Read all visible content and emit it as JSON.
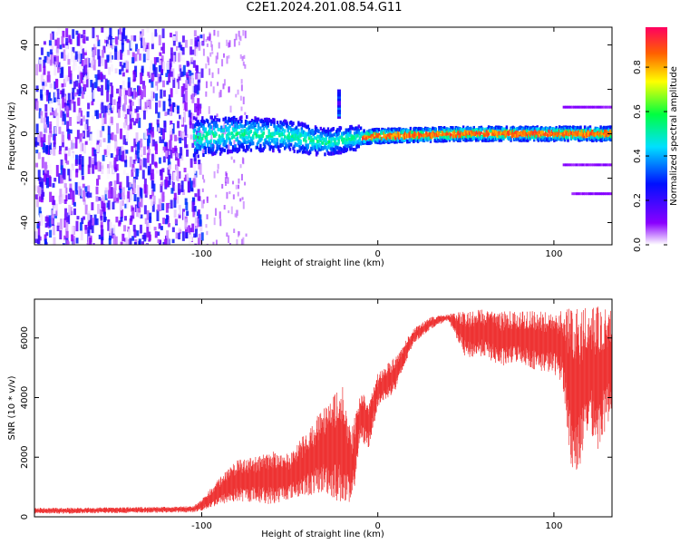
{
  "page": {
    "title": "C2E1.2024.201.08.54.G11"
  },
  "chart_data": [
    {
      "type": "heatmap",
      "xlabel": "Height of straight line (km)",
      "ylabel": "Frequency (Hz)",
      "xlim": [
        -195,
        133
      ],
      "ylim": [
        -50,
        48
      ],
      "xticks": [
        -100,
        0,
        100
      ],
      "xtick_labels": [
        "-100",
        "0",
        "100"
      ],
      "yticks": [
        -40,
        -20,
        0,
        20,
        40
      ],
      "ytick_labels": [
        "-40",
        "-20",
        "0",
        "20",
        "40"
      ],
      "colorbar": {
        "label": "Normalized spectral amplitude",
        "range": [
          0,
          0.98
        ],
        "ticks": [
          0.0,
          0.2,
          0.4,
          0.6,
          0.8
        ],
        "tick_labels": [
          "0.0",
          "0.2",
          "0.4",
          "0.6",
          "0.8"
        ],
        "colormap": [
          "#ffffff",
          "#8a00ff",
          "#0010ff",
          "#00e0ff",
          "#00ff40",
          "#ffff00",
          "#ff6000",
          "#ff0060"
        ]
      },
      "features": {
        "noise_region_x": [
          -195,
          -100
        ],
        "noise_amplitude": 0.25,
        "signal_track": [
          {
            "x": -110,
            "y": -2
          },
          {
            "x": -80,
            "y": 0
          },
          {
            "x": -50,
            "y": -1
          },
          {
            "x": -30,
            "y": -4
          },
          {
            "x": -15,
            "y": -2
          },
          {
            "x": 0,
            "y": -1
          },
          {
            "x": 50,
            "y": 0
          },
          {
            "x": 133,
            "y": 0
          }
        ],
        "sidebands": [
          {
            "x": [
              105,
              133
            ],
            "y": 12
          },
          {
            "x": [
              105,
              133
            ],
            "y": -14
          },
          {
            "x": [
              110,
              133
            ],
            "y": -27
          }
        ],
        "artifact": {
          "x": -22,
          "y": [
            8,
            20
          ]
        }
      }
    },
    {
      "type": "line",
      "xlabel": "Height of straight line (km)",
      "ylabel": "SNR (10 * v/v)",
      "xlim": [
        -195,
        133
      ],
      "ylim": [
        0,
        7300
      ],
      "xticks": [
        -100,
        0,
        100
      ],
      "xtick_labels": [
        "-100",
        "0",
        "100"
      ],
      "yticks": [
        0,
        2000,
        4000,
        6000
      ],
      "ytick_labels": [
        "0",
        "2000",
        "4000",
        "6000"
      ],
      "color": "#ee3333",
      "series": [
        {
          "x": [
            -195,
            -150,
            -120,
            -105,
            -100,
            -90,
            -80,
            -70,
            -60,
            -50,
            -40,
            -30,
            -20,
            -15,
            -10,
            -5,
            0,
            10,
            20,
            30,
            40,
            50,
            60,
            70,
            80,
            90,
            100,
            105,
            110,
            115,
            120,
            125,
            133
          ],
          "upper": [
            300,
            320,
            340,
            360,
            600,
            1300,
            1900,
            2000,
            2200,
            2100,
            2900,
            3800,
            4400,
            2900,
            4300,
            3900,
            4800,
            5400,
            6300,
            6700,
            6800,
            6900,
            7000,
            6900,
            6900,
            6900,
            6900,
            6950,
            7000,
            7000,
            7000,
            7050,
            7100
          ],
          "lower": [
            100,
            120,
            140,
            150,
            200,
            400,
            500,
            500,
            400,
            600,
            700,
            800,
            400,
            200,
            2500,
            2300,
            3700,
            4200,
            5800,
            6300,
            6600,
            5300,
            5400,
            5000,
            5200,
            4900,
            4800,
            4500,
            1400,
            1600,
            3000,
            2200,
            3500
          ]
        }
      ]
    }
  ]
}
